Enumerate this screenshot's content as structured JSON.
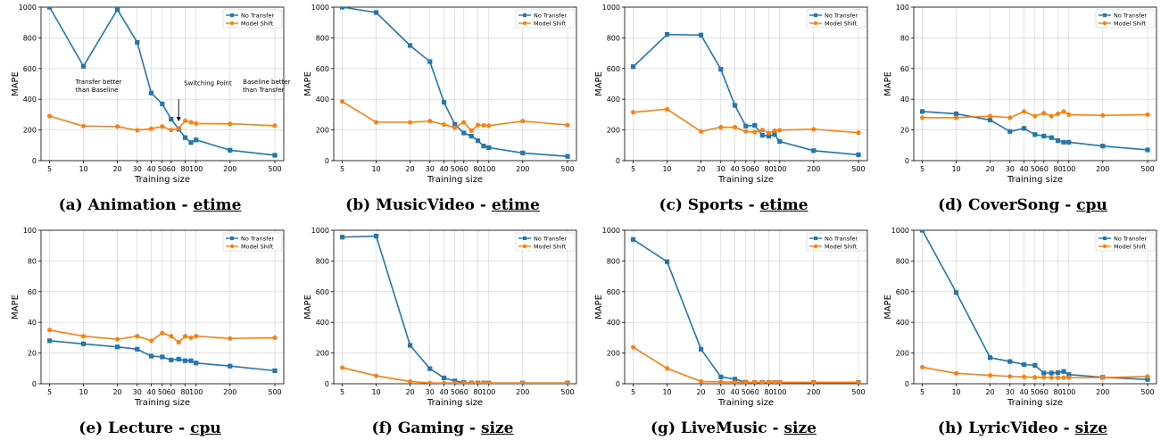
{
  "colors": {
    "no_transfer": "#1f77b4",
    "model_shift": "#ff7f0e",
    "grid": "#d0d0d0"
  },
  "legend_labels": [
    "No Transfer",
    "Model Shift"
  ],
  "chart_data": [
    {
      "type": "line",
      "caption_prefix": "(a) Animation - ",
      "caption_metric": "etime",
      "xlabel": "Training size",
      "ylabel": "MAPE",
      "x_scale": "log",
      "ylim": [
        0,
        1000
      ],
      "yticks": [
        0,
        200,
        400,
        600,
        800,
        1000
      ],
      "x_tick_values": [
        5,
        10,
        20,
        30,
        40,
        50,
        60,
        80,
        100,
        200,
        500
      ],
      "x_tick_labels": [
        "5",
        "10",
        "20",
        "30",
        "40",
        "50",
        "60",
        "80",
        "100",
        "200",
        "500"
      ],
      "legend": "top-right",
      "series": [
        {
          "name": "No Transfer",
          "x": [
            5,
            10,
            20,
            30,
            40,
            50,
            60,
            70,
            80,
            90,
            100,
            200,
            500
          ],
          "y": [
            1010,
            615,
            985,
            770,
            440,
            370,
            270,
            205,
            150,
            118,
            135,
            68,
            35
          ]
        },
        {
          "name": "Model Shift",
          "x": [
            5,
            10,
            20,
            30,
            40,
            50,
            60,
            70,
            80,
            90,
            100,
            200,
            500
          ],
          "y": [
            290,
            225,
            222,
            198,
            208,
            222,
            200,
            210,
            260,
            250,
            242,
            240,
            228
          ]
        }
      ],
      "annotations": [
        {
          "lines": [
            "Transfer better",
            "than Baseline"
          ],
          "x": 8.5,
          "y": 500
        },
        {
          "lines": [
            "Switching Point"
          ],
          "x": 78,
          "y": 490
        },
        {
          "lines": [
            "Baseline better",
            "than Transfer"
          ],
          "x": 260,
          "y": 500
        }
      ],
      "arrow": {
        "x": 70,
        "y_from": 400,
        "y_to": 255
      }
    },
    {
      "type": "line",
      "caption_prefix": "(b) MusicVideo - ",
      "caption_metric": "etime",
      "xlabel": "Training size",
      "ylabel": "MAPE",
      "x_scale": "log",
      "ylim": [
        0,
        1000
      ],
      "yticks": [
        0,
        200,
        400,
        600,
        800,
        1000
      ],
      "x_tick_values": [
        5,
        10,
        20,
        30,
        40,
        50,
        60,
        80,
        100,
        200,
        500
      ],
      "x_tick_labels": [
        "5",
        "10",
        "20",
        "30",
        "40",
        "50",
        "60",
        "80",
        "100",
        "200",
        "500"
      ],
      "legend": "top-right",
      "series": [
        {
          "name": "No Transfer",
          "x": [
            5,
            10,
            20,
            30,
            40,
            50,
            60,
            70,
            80,
            90,
            100,
            200,
            500
          ],
          "y": [
            1030,
            965,
            750,
            645,
            380,
            235,
            180,
            160,
            130,
            95,
            85,
            50,
            28
          ]
        },
        {
          "name": "Model Shift",
          "x": [
            5,
            10,
            20,
            30,
            40,
            50,
            60,
            70,
            80,
            90,
            100,
            200,
            500
          ],
          "y": [
            385,
            250,
            250,
            258,
            235,
            215,
            250,
            195,
            232,
            230,
            228,
            258,
            232
          ]
        }
      ]
    },
    {
      "type": "line",
      "caption_prefix": "(c) Sports - ",
      "caption_metric": "etime",
      "xlabel": "Training size",
      "ylabel": "MAPE",
      "x_scale": "log",
      "ylim": [
        0,
        1000
      ],
      "yticks": [
        0,
        200,
        400,
        600,
        800,
        1000
      ],
      "x_tick_values": [
        5,
        10,
        20,
        30,
        40,
        50,
        60,
        80,
        100,
        200,
        500
      ],
      "x_tick_labels": [
        "5",
        "10",
        "20",
        "30",
        "40",
        "50",
        "60",
        "80",
        "100",
        "200",
        "500"
      ],
      "legend": "top-right",
      "series": [
        {
          "name": "No Transfer",
          "x": [
            5,
            10,
            20,
            30,
            40,
            50,
            60,
            70,
            80,
            90,
            100,
            200,
            500
          ],
          "y": [
            612,
            822,
            818,
            595,
            360,
            225,
            230,
            165,
            160,
            170,
            125,
            65,
            38
          ]
        },
        {
          "name": "Model Shift",
          "x": [
            5,
            10,
            20,
            30,
            40,
            50,
            60,
            70,
            80,
            90,
            100,
            200,
            500
          ],
          "y": [
            315,
            335,
            190,
            218,
            218,
            190,
            185,
            200,
            180,
            195,
            198,
            205,
            182
          ]
        }
      ]
    },
    {
      "type": "line",
      "caption_prefix": "(d) CoverSong - ",
      "caption_metric": "cpu",
      "xlabel": "Training size",
      "ylabel": "MAPE",
      "x_scale": "log",
      "ylim": [
        0,
        100
      ],
      "yticks": [
        0,
        20,
        40,
        60,
        80,
        100
      ],
      "x_tick_values": [
        5,
        10,
        20,
        30,
        40,
        50,
        60,
        80,
        100,
        200,
        500
      ],
      "x_tick_labels": [
        "5",
        "10",
        "20",
        "30",
        "40",
        "50",
        "60",
        "80",
        "100",
        "200",
        "500"
      ],
      "legend": "top-right",
      "series": [
        {
          "name": "No Transfer",
          "x": [
            5,
            10,
            20,
            30,
            40,
            50,
            60,
            70,
            80,
            90,
            100,
            200,
            500
          ],
          "y": [
            32,
            30.5,
            26.5,
            19,
            21,
            17,
            16,
            15,
            13,
            12,
            12,
            9.5,
            7
          ]
        },
        {
          "name": "Model Shift",
          "x": [
            5,
            10,
            20,
            30,
            40,
            50,
            60,
            70,
            80,
            90,
            100,
            200,
            500
          ],
          "y": [
            28,
            28,
            29,
            28,
            32,
            29,
            31,
            29,
            30.5,
            32,
            30,
            29.5,
            30
          ]
        }
      ]
    },
    {
      "type": "line",
      "caption_prefix": "(e) Lecture - ",
      "caption_metric": "cpu",
      "xlabel": "Training size",
      "ylabel": "MAPE",
      "x_scale": "log",
      "ylim": [
        0,
        100
      ],
      "yticks": [
        0,
        20,
        40,
        60,
        80,
        100
      ],
      "x_tick_values": [
        5,
        10,
        20,
        30,
        40,
        50,
        60,
        80,
        100,
        200,
        500
      ],
      "x_tick_labels": [
        "5",
        "10",
        "20",
        "30",
        "40",
        "50",
        "60",
        "80",
        "100",
        "200",
        "500"
      ],
      "legend": "top-right",
      "series": [
        {
          "name": "No Transfer",
          "x": [
            5,
            10,
            20,
            30,
            40,
            50,
            60,
            70,
            80,
            90,
            100,
            200,
            500
          ],
          "y": [
            28,
            26,
            24,
            22.5,
            18,
            17.5,
            15.5,
            16,
            15,
            15,
            13.5,
            11.5,
            8.5
          ]
        },
        {
          "name": "Model Shift",
          "x": [
            5,
            10,
            20,
            30,
            40,
            50,
            60,
            70,
            80,
            90,
            100,
            200,
            500
          ],
          "y": [
            35,
            31,
            29,
            31,
            28,
            33,
            31,
            27,
            31,
            30,
            31,
            29.5,
            30
          ]
        }
      ]
    },
    {
      "type": "line",
      "caption_prefix": "(f) Gaming - ",
      "caption_metric": "size",
      "xlabel": "Training size",
      "ylabel": "MAPE",
      "x_scale": "log",
      "ylim": [
        0,
        1000
      ],
      "yticks": [
        0,
        200,
        400,
        600,
        800,
        1000
      ],
      "x_tick_values": [
        5,
        10,
        20,
        30,
        40,
        50,
        60,
        80,
        100,
        200,
        500
      ],
      "x_tick_labels": [
        "5",
        "10",
        "20",
        "30",
        "40",
        "50",
        "60",
        "80",
        "100",
        "200",
        "500"
      ],
      "legend": "top-right",
      "series": [
        {
          "name": "No Transfer",
          "x": [
            5,
            10,
            20,
            30,
            40,
            50,
            60,
            70,
            80,
            90,
            100,
            200,
            500
          ],
          "y": [
            955,
            962,
            250,
            98,
            38,
            18,
            8,
            5,
            5,
            5,
            5,
            5,
            5
          ]
        },
        {
          "name": "Model Shift",
          "x": [
            5,
            10,
            20,
            30,
            40,
            50,
            60,
            70,
            80,
            90,
            100,
            200,
            500
          ],
          "y": [
            105,
            52,
            15,
            5,
            5,
            5,
            5,
            5,
            5,
            5,
            5,
            5,
            5
          ]
        }
      ]
    },
    {
      "type": "line",
      "caption_prefix": "(g) LiveMusic - ",
      "caption_metric": "size",
      "xlabel": "Training size",
      "ylabel": "MAPE",
      "x_scale": "log",
      "ylim": [
        0,
        1000
      ],
      "yticks": [
        0,
        200,
        400,
        600,
        800,
        1000
      ],
      "x_tick_values": [
        5,
        10,
        20,
        30,
        40,
        50,
        60,
        80,
        100,
        200,
        500
      ],
      "x_tick_labels": [
        "5",
        "10",
        "20",
        "30",
        "40",
        "50",
        "60",
        "80",
        "100",
        "200",
        "500"
      ],
      "legend": "top-right",
      "series": [
        {
          "name": "No Transfer",
          "x": [
            5,
            10,
            20,
            30,
            40,
            50,
            60,
            70,
            80,
            90,
            100,
            200,
            500
          ],
          "y": [
            940,
            795,
            225,
            45,
            30,
            10,
            8,
            8,
            8,
            8,
            8,
            8,
            8
          ]
        },
        {
          "name": "Model Shift",
          "x": [
            5,
            10,
            20,
            30,
            40,
            50,
            60,
            70,
            80,
            90,
            100,
            200,
            500
          ],
          "y": [
            238,
            100,
            15,
            12,
            10,
            10,
            10,
            10,
            10,
            10,
            10,
            10,
            10
          ]
        }
      ]
    },
    {
      "type": "line",
      "caption_prefix": "(h) LyricVideo - ",
      "caption_metric": "size",
      "xlabel": "Training size",
      "ylabel": "MAPE",
      "x_scale": "log",
      "ylim": [
        0,
        1000
      ],
      "yticks": [
        0,
        200,
        400,
        600,
        800,
        1000
      ],
      "x_tick_values": [
        5,
        10,
        20,
        30,
        40,
        50,
        60,
        80,
        100,
        200,
        500
      ],
      "x_tick_labels": [
        "5",
        "10",
        "20",
        "30",
        "40",
        "50",
        "60",
        "80",
        "100",
        "200",
        "500"
      ],
      "legend": "top-right",
      "series": [
        {
          "name": "No Transfer",
          "x": [
            5,
            10,
            20,
            30,
            40,
            50,
            60,
            70,
            80,
            90,
            100,
            200,
            500
          ],
          "y": [
            1030,
            595,
            170,
            145,
            125,
            120,
            70,
            70,
            72,
            80,
            60,
            42,
            28
          ]
        },
        {
          "name": "Model Shift",
          "x": [
            5,
            10,
            20,
            30,
            40,
            50,
            60,
            70,
            80,
            90,
            100,
            200,
            500
          ],
          "y": [
            108,
            68,
            55,
            48,
            45,
            42,
            42,
            40,
            40,
            40,
            40,
            40,
            48
          ]
        }
      ]
    }
  ]
}
